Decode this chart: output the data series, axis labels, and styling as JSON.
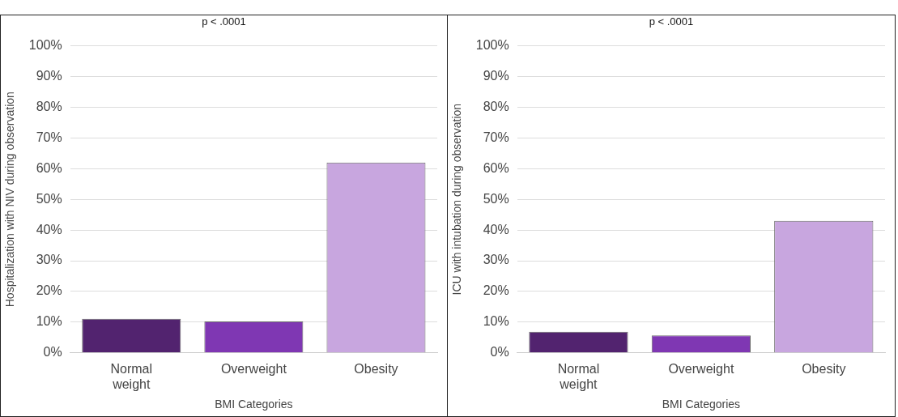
{
  "chart_data": [
    {
      "type": "bar",
      "annotations": [
        "p < .0001"
      ],
      "ylabel": "Hospitalization with NIV during observation",
      "xlabel": "BMI Categories",
      "categories": [
        "Normal weight",
        "Overweight",
        "Obesity"
      ],
      "values": [
        11.1,
        10.2,
        62.0
      ],
      "colors": [
        "#52236f",
        "#7f37b3",
        "#c8a6df"
      ],
      "ylim": [
        0,
        100
      ],
      "yticks": [
        {
          "value": 0,
          "label": "0%"
        },
        {
          "value": 10,
          "label": "10%"
        },
        {
          "value": 20,
          "label": "20%"
        },
        {
          "value": 30,
          "label": "30%"
        },
        {
          "value": 40,
          "label": "40%"
        },
        {
          "value": 50,
          "label": "50%"
        },
        {
          "value": 60,
          "label": "60%"
        },
        {
          "value": 70,
          "label": "70%"
        },
        {
          "value": 80,
          "label": "80%"
        },
        {
          "value": 90,
          "label": "90%"
        },
        {
          "value": 100,
          "label": "100%"
        }
      ],
      "grid": "y"
    },
    {
      "type": "bar",
      "annotations": [
        "p < .0001"
      ],
      "ylabel": "ICU with intubation during observation",
      "xlabel": "BMI Categories",
      "categories": [
        "Normal weight",
        "Overweight",
        "Obesity"
      ],
      "values": [
        6.9,
        5.7,
        43.0
      ],
      "colors": [
        "#52236f",
        "#7f37b3",
        "#c8a6df"
      ],
      "ylim": [
        0,
        100
      ],
      "yticks": [
        {
          "value": 0,
          "label": "0%"
        },
        {
          "value": 10,
          "label": "10%"
        },
        {
          "value": 20,
          "label": "20%"
        },
        {
          "value": 30,
          "label": "30%"
        },
        {
          "value": 40,
          "label": "40%"
        },
        {
          "value": 50,
          "label": "50%"
        },
        {
          "value": 60,
          "label": "60%"
        },
        {
          "value": 70,
          "label": "70%"
        },
        {
          "value": 80,
          "label": "80%"
        },
        {
          "value": 90,
          "label": "90%"
        },
        {
          "value": 100,
          "label": "100%"
        }
      ],
      "grid": "y"
    }
  ]
}
